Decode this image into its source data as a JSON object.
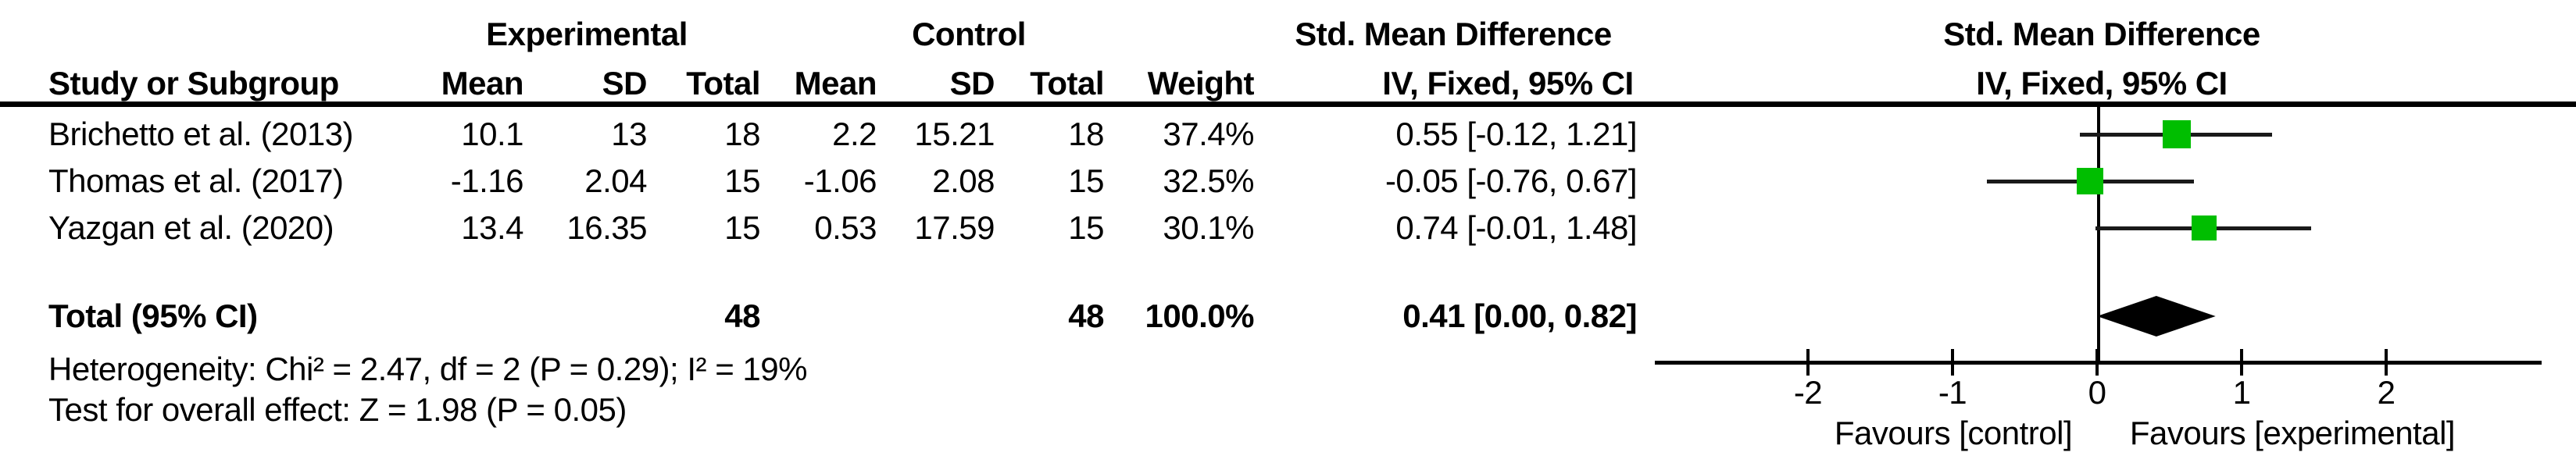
{
  "table": {
    "study_col_header": "Study or Subgroup",
    "group_experimental": "Experimental",
    "group_control": "Control",
    "effect_col_title_line1": "Std. Mean Difference",
    "effect_col_title_line2": "IV, Fixed, 95% CI",
    "sub_headers": [
      "Mean",
      "SD",
      "Total",
      "Mean",
      "SD",
      "Total",
      "Weight"
    ]
  },
  "plot": {
    "title_line1": "Std. Mean Difference",
    "title_line2": "IV, Fixed, 95% CI",
    "favours_left": "Favours [control]",
    "favours_right": "Favours [experimental]",
    "marker_color": "#00be00",
    "line_color": "#1a1a1a",
    "diamond_color": "#000000"
  },
  "studies": [
    {
      "name": "Brichetto et al. (2013)",
      "mean_e": "10.1",
      "sd_e": "13",
      "n_e": "18",
      "mean_c": "2.2",
      "sd_c": "15.21",
      "n_c": "18",
      "weight": "37.4%",
      "ci_text": "0.55 [-0.12, 1.21]",
      "effect": 0.55,
      "ci_low": -0.12,
      "ci_high": 1.21,
      "weight_pct": 37.4
    },
    {
      "name": "Thomas et al. (2017)",
      "mean_e": "-1.16",
      "sd_e": "2.04",
      "n_e": "15",
      "mean_c": "-1.06",
      "sd_c": "2.08",
      "n_c": "15",
      "weight": "32.5%",
      "ci_text": "-0.05 [-0.76, 0.67]",
      "effect": -0.05,
      "ci_low": -0.76,
      "ci_high": 0.67,
      "weight_pct": 32.5
    },
    {
      "name": "Yazgan et al. (2020)",
      "mean_e": "13.4",
      "sd_e": "16.35",
      "n_e": "15",
      "mean_c": "0.53",
      "sd_c": "17.59",
      "n_c": "15",
      "weight": "30.1%",
      "ci_text": "0.74 [-0.01, 1.48]",
      "effect": 0.74,
      "ci_low": -0.01,
      "ci_high": 1.48,
      "weight_pct": 30.1
    }
  ],
  "total": {
    "label": "Total (95% CI)",
    "n_e": "48",
    "n_c": "48",
    "weight": "100.0%",
    "ci_text": "0.41 [0.00, 0.82]",
    "effect": 0.41,
    "ci_low": 0.0,
    "ci_high": 0.82
  },
  "footnotes": {
    "heterogeneity": "Heterogeneity: Chi² = 2.47, df = 2 (P = 0.29); I² = 19%",
    "overall_effect": "Test for overall effect: Z = 1.98 (P = 0.05)"
  },
  "chart_data": {
    "type": "forest",
    "effect_measure": "Std. Mean Difference (IV, Fixed, 95% CI)",
    "studies": [
      "Brichetto et al. (2013)",
      "Thomas et al. (2017)",
      "Yazgan et al. (2020)"
    ],
    "effects": [
      0.55,
      -0.05,
      0.74
    ],
    "ci_low": [
      -0.12,
      -0.76,
      -0.01
    ],
    "ci_high": [
      1.21,
      0.67,
      1.48
    ],
    "weights_pct": [
      37.4,
      32.5,
      30.1
    ],
    "experimental": {
      "means": [
        10.1,
        -1.16,
        13.4
      ],
      "sds": [
        13,
        2.04,
        16.35
      ],
      "totals": [
        18,
        15,
        15
      ],
      "total_n": 48
    },
    "control": {
      "means": [
        2.2,
        -1.06,
        0.53
      ],
      "sds": [
        15.21,
        2.08,
        17.59
      ],
      "totals": [
        18,
        15,
        15
      ],
      "total_n": 48
    },
    "pooled": {
      "effect": 0.41,
      "ci_low": 0.0,
      "ci_high": 0.82,
      "weight_pct": 100.0
    },
    "heterogeneity": {
      "chi2": 2.47,
      "df": 2,
      "p": 0.29,
      "i2_pct": 19
    },
    "overall_test": {
      "z": 1.98,
      "p": 0.05
    },
    "x_ticks": [
      -2,
      -1,
      0,
      1,
      2
    ],
    "xlim": [
      -3.05,
      3.08
    ],
    "axis_label_left": "Favours [control]",
    "axis_label_right": "Favours [experimental]",
    "grid": false,
    "legend": false
  }
}
